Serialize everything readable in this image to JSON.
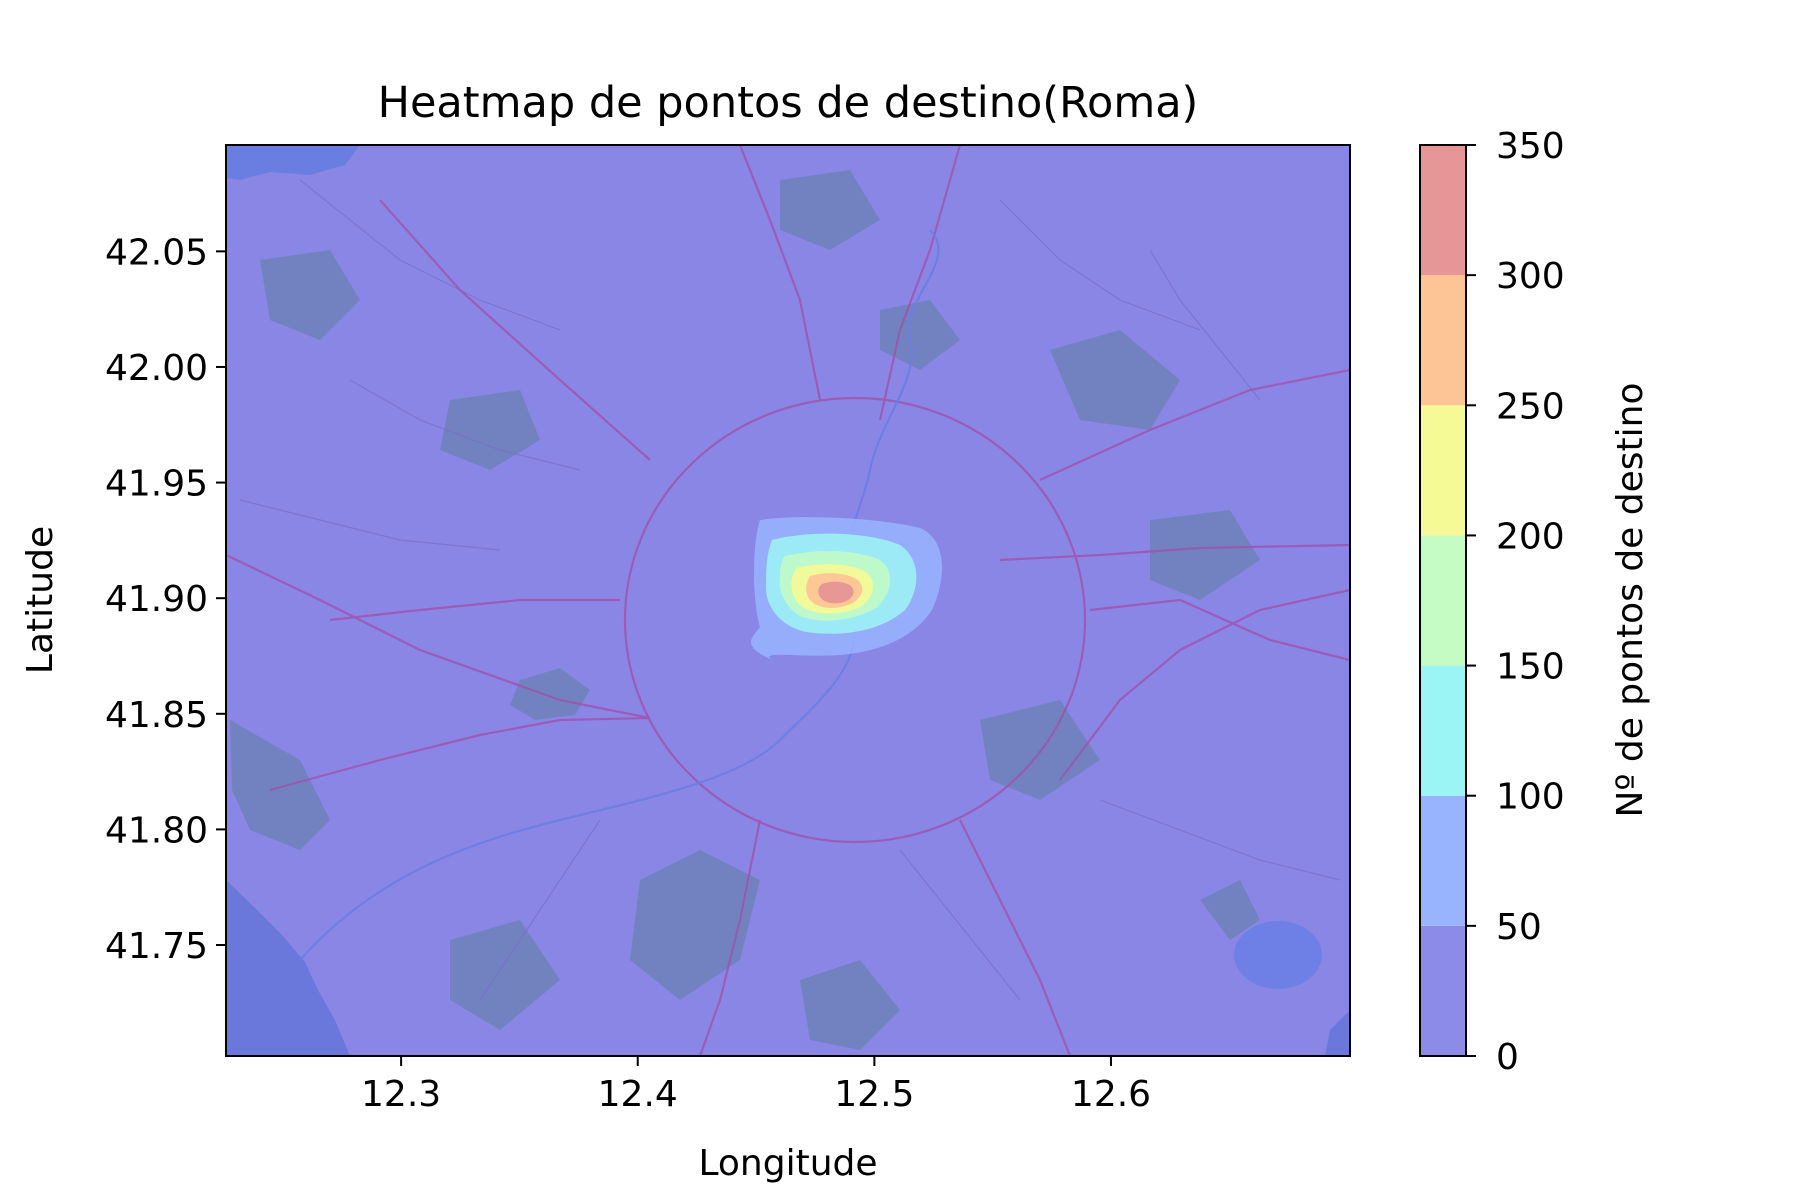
{
  "chart_data": {
    "type": "heatmap",
    "title": "Heatmap de pontos de destino(Roma)",
    "xlabel": "Longitude",
    "ylabel": "Latitude",
    "xlim": [
      12.226,
      12.701
    ],
    "ylim": [
      41.702,
      42.096
    ],
    "x_ticks": [
      12.3,
      12.4,
      12.5,
      12.6
    ],
    "x_tick_labels": [
      "12.3",
      "12.4",
      "12.5",
      "12.6"
    ],
    "y_ticks": [
      41.75,
      41.8,
      41.85,
      41.9,
      41.95,
      42.0,
      42.05
    ],
    "y_tick_labels": [
      "41.75",
      "41.80",
      "41.85",
      "41.90",
      "41.95",
      "42.00",
      "42.05"
    ],
    "background": "map of Rome (OpenStreetMap tiles)",
    "hotspot": {
      "lon": 12.485,
      "lat": 41.902
    },
    "levels": [
      {
        "min": 0,
        "max": 50,
        "color": "#8c8ce8"
      },
      {
        "min": 50,
        "max": 100,
        "color": "#98b4ff"
      },
      {
        "min": 100,
        "max": 150,
        "color": "#9cf5f5"
      },
      {
        "min": 150,
        "max": 200,
        "color": "#c4fcc4"
      },
      {
        "min": 200,
        "max": 250,
        "color": "#f6fa96"
      },
      {
        "min": 250,
        "max": 300,
        "color": "#fdc496"
      },
      {
        "min": 300,
        "max": 350,
        "color": "#e69696"
      }
    ],
    "colorbar": {
      "label": "Nº de pontos de destino",
      "min": 0,
      "max": 350,
      "ticks": [
        0,
        50,
        100,
        150,
        200,
        250,
        300,
        350
      ],
      "tick_labels": [
        "0",
        "50",
        "100",
        "150",
        "200",
        "250",
        "300",
        "350"
      ]
    }
  },
  "colors": {
    "map_base": "#8a86e6",
    "map_road": "#a04fa8",
    "map_green": "#5f7fa0",
    "sea": "#6a78dc"
  }
}
